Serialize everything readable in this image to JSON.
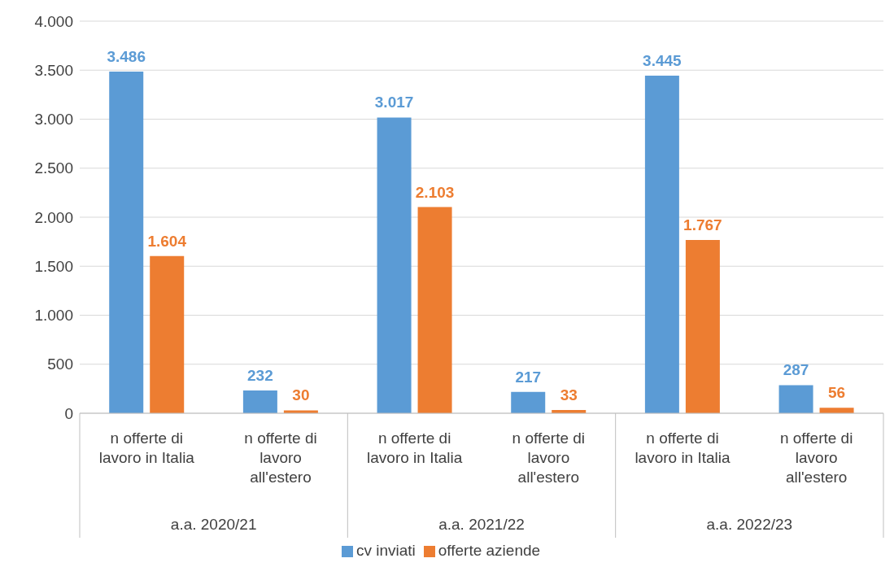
{
  "chart_data": {
    "type": "bar",
    "categories": [
      "n offerte di lavoro in Italia",
      "n offerte di lavoro all'estero",
      "n offerte di lavoro in Italia",
      "n offerte di lavoro all'estero",
      "n offerte di lavoro in Italia",
      "n offerte di lavoro all'estero"
    ],
    "annotations": [
      "a.a. 2020/21",
      "a.a. 2021/22",
      "a.a. 2022/23"
    ],
    "series": [
      {
        "name": "cv inviati",
        "color": "#5b9bd5",
        "values": [
          3486,
          232,
          3017,
          217,
          3445,
          287
        ],
        "value_labels": [
          "3.486",
          "232",
          "3.017",
          "217",
          "3.445",
          "287"
        ]
      },
      {
        "name": "offerte aziende",
        "color": "#ed7d31",
        "values": [
          1604,
          30,
          2103,
          33,
          1767,
          56
        ],
        "value_labels": [
          "1.604",
          "30",
          "2.103",
          "33",
          "1.767",
          "56"
        ]
      }
    ],
    "ylim": [
      0,
      4000
    ],
    "yticks": [
      {
        "value": 0,
        "label": "0"
      },
      {
        "value": 500,
        "label": "500"
      },
      {
        "value": 1000,
        "label": "1.000"
      },
      {
        "value": 1500,
        "label": "1.500"
      },
      {
        "value": 2000,
        "label": "2.000"
      },
      {
        "value": 2500,
        "label": "2.500"
      },
      {
        "value": 3000,
        "label": "3.000"
      },
      {
        "value": 3500,
        "label": "3.500"
      },
      {
        "value": 4000,
        "label": "4.000"
      }
    ],
    "grid": "y",
    "legend": "bottom"
  }
}
